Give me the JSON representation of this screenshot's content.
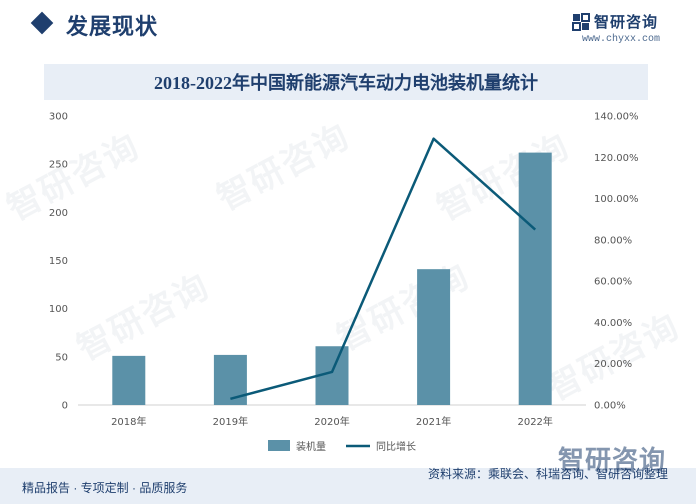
{
  "header": {
    "section_title": "发展现状",
    "brand_name": "智研咨询",
    "brand_url": "www.chyxx.com",
    "brand_icon": "chyxx-logo-icon"
  },
  "chart_data": {
    "type": "bar+line",
    "title": "2018-2022年中国新能源汽车动力电池装机量统计",
    "categories": [
      "2018年",
      "2019年",
      "2020年",
      "2021年",
      "2022年"
    ],
    "series": [
      {
        "name": "装机量",
        "type": "bar",
        "axis": "left",
        "values": [
          51,
          52,
          61,
          141,
          262
        ],
        "color": "#5b91a8"
      },
      {
        "name": "同比增长",
        "type": "line",
        "axis": "right",
        "values": [
          null,
          3,
          16,
          129,
          85
        ],
        "color": "#0b5a78"
      }
    ],
    "y_left": {
      "min": 0,
      "max": 300,
      "ticks": [
        0,
        50,
        100,
        150,
        200,
        250,
        300
      ]
    },
    "y_right": {
      "min": 0,
      "max": 140,
      "ticks": [
        "0.00%",
        "20.00%",
        "40.00%",
        "60.00%",
        "80.00%",
        "100.00%",
        "120.00%",
        "140.00%"
      ]
    },
    "grid": false,
    "legend_position": "bottom"
  },
  "footer": {
    "left": "精品报告 · 专项定制 · 品质服务",
    "right": "资料来源：乘联会、科瑞咨询、智研咨询整理",
    "watermark_text": "智研咨询"
  }
}
